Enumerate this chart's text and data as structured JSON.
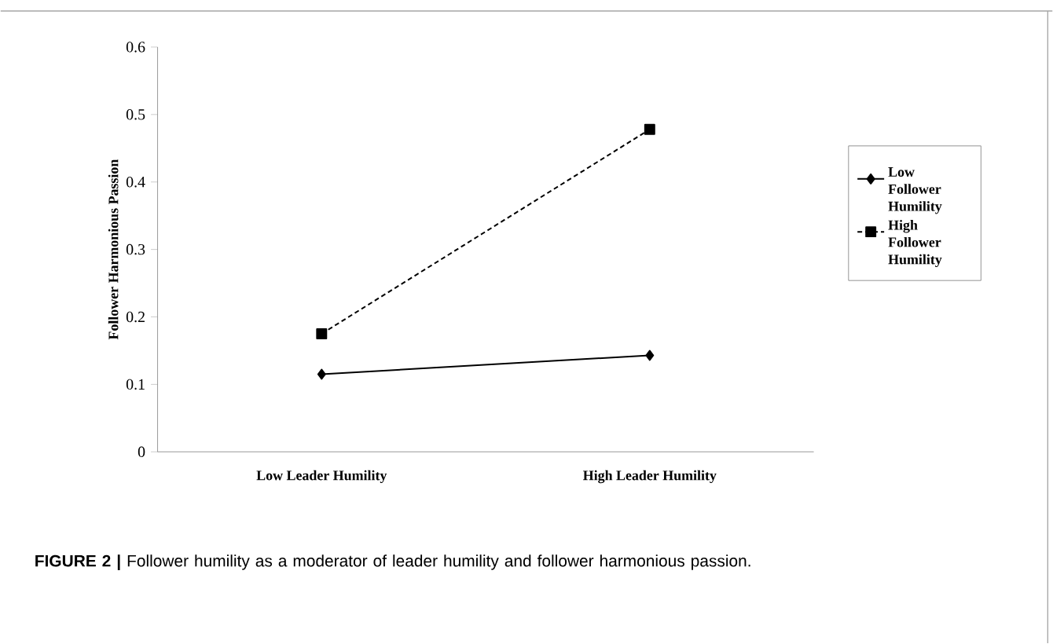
{
  "chart_data": {
    "type": "line",
    "ylabel": "Follower Harmonious Passion",
    "categories": [
      "Low Leader Humility",
      "High Leader Humility"
    ],
    "series": [
      {
        "name": "Low Follower Humility",
        "color": "#000000",
        "marker": "diamond",
        "line_style": "solid",
        "values": [
          0.115,
          0.143
        ]
      },
      {
        "name": "High Follower Humility",
        "color": "#000000",
        "marker": "square",
        "line_style": "dashed",
        "values": [
          0.175,
          0.478
        ]
      }
    ],
    "ylim": [
      0,
      0.6
    ],
    "yticks": [
      0,
      0.1,
      0.2,
      0.3,
      0.4,
      0.5,
      0.6
    ],
    "grid": false,
    "legend": "right",
    "annotations": [
      "**FIGURE 2 |** Follower humility as a moderator of leader humility and follower harmonious passion."
    ]
  }
}
